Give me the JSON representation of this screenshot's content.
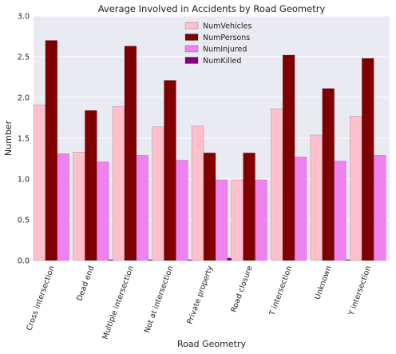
{
  "chart_data": {
    "type": "bar",
    "title": "Average Involved in Accidents by Road Geometry",
    "xlabel": "Road Geometry",
    "ylabel": "Number",
    "ylim": [
      0,
      3.0
    ],
    "yticks": [
      "0.0",
      "0.5",
      "1.0",
      "1.5",
      "2.0",
      "2.5",
      "3.0"
    ],
    "grid": true,
    "legend_position": "top-center",
    "categories": [
      "Cross intersection",
      "Dead end",
      "Multiple intersection",
      "Not at intersection",
      "Private property",
      "Road closure",
      "T intersection",
      "Unknown",
      "Y intersection"
    ],
    "series": [
      {
        "name": "NumVehicles",
        "color": "#ffc0cb",
        "values": [
          1.91,
          1.33,
          1.89,
          1.64,
          1.65,
          0.99,
          1.86,
          1.54,
          1.77
        ]
      },
      {
        "name": "NumPersons",
        "color": "#800000",
        "values": [
          2.7,
          1.84,
          2.63,
          2.21,
          1.32,
          1.32,
          2.52,
          2.11,
          2.48
        ]
      },
      {
        "name": "NumInjured",
        "color": "#ee82ee",
        "values": [
          1.31,
          1.21,
          1.29,
          1.23,
          0.99,
          0.99,
          1.27,
          1.22,
          1.29
        ]
      },
      {
        "name": "NumKilled",
        "color": "#800080",
        "values": [
          0.0,
          0.01,
          0.01,
          0.01,
          0.03,
          0.0,
          0.0,
          0.01,
          0.0
        ]
      }
    ]
  }
}
